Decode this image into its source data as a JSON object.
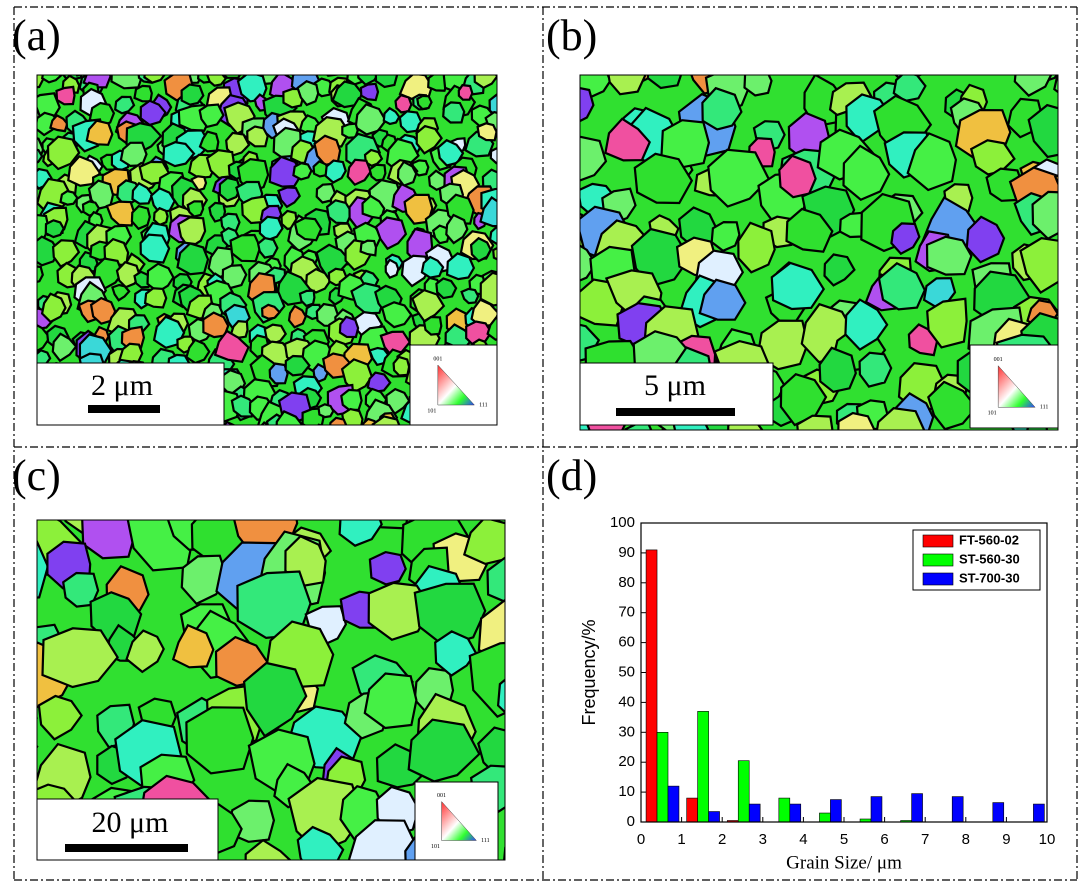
{
  "panels": [
    {
      "label": "(a)",
      "scale_bar": "2 μm"
    },
    {
      "label": "(b)",
      "scale_bar": "5 μm"
    },
    {
      "label": "(c)",
      "scale_bar": "20 μm"
    }
  ],
  "ipf_labels": [
    "001",
    "101",
    "111"
  ],
  "chart_data": {
    "type": "bar",
    "panel_label": "(d)",
    "xlabel": "Grain Size/ μm",
    "ylabel": "Frequency/%",
    "x": [
      0.5,
      1.5,
      2.5,
      3.5,
      4.5,
      5.5,
      6.5,
      7.5,
      8.5,
      9.5
    ],
    "series": [
      {
        "name": "FT-560-02",
        "color": "#ff0000",
        "values": [
          91,
          8,
          0.5,
          0,
          0,
          0,
          0,
          0,
          0,
          0
        ]
      },
      {
        "name": "ST-560-30",
        "color": "#00ff00",
        "values": [
          30,
          37,
          20.5,
          8,
          3,
          1,
          0.5,
          0,
          0,
          0
        ]
      },
      {
        "name": "ST-700-30",
        "color": "#0000ff",
        "values": [
          12,
          3.5,
          6,
          6,
          7.5,
          8.5,
          9.5,
          8.5,
          6.5,
          6
        ]
      }
    ],
    "xlim": [
      0,
      10
    ],
    "xticks": [
      0,
      1,
      2,
      3,
      4,
      5,
      6,
      7,
      8,
      9,
      10
    ],
    "ylim": [
      0,
      100
    ],
    "yticks": [
      0,
      10,
      20,
      30,
      40,
      50,
      60,
      70,
      80,
      90,
      100
    ],
    "legend": "upper right"
  }
}
